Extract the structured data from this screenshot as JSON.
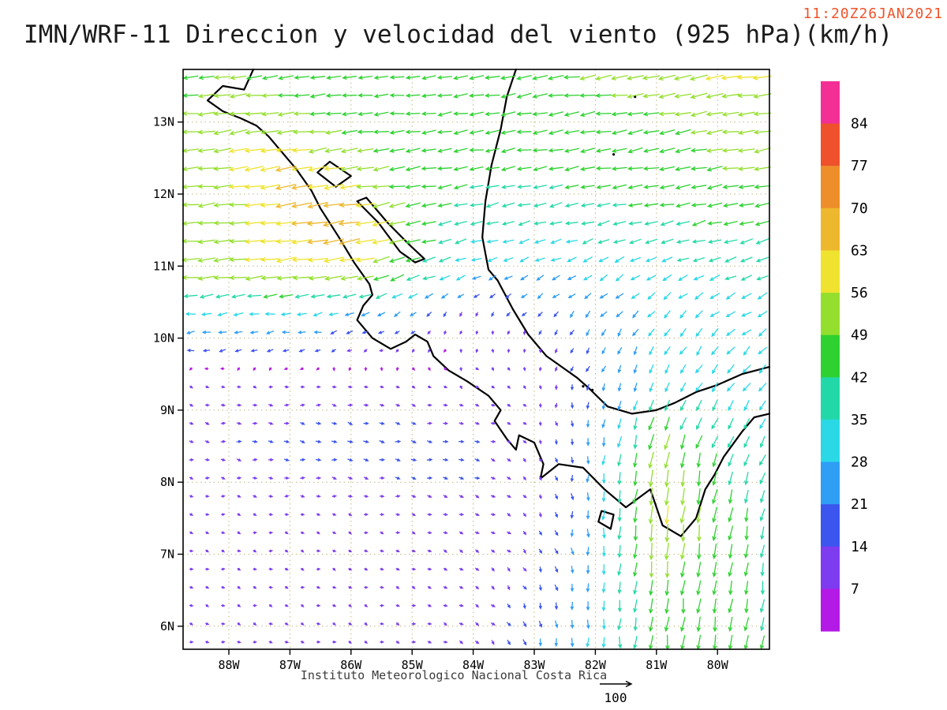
{
  "header": {
    "timestamp": "11:20Z26JAN2021",
    "title": "IMN/WRF-11 Direccion y velocidad del viento (925 hPa)(km/h)"
  },
  "footer": {
    "caption": "Instituto Meteorologico Nacional Costa Rica",
    "reference_vector_label": "100"
  },
  "chart_data": {
    "type": "vector_field_map",
    "title": "IMN/WRF-11 Direccion y velocidad del viento (925 hPa)(km/h)",
    "valid_time": "11:20Z26JAN2021",
    "level": "925 hPa",
    "units": "km/h",
    "reference_vector_kmh": 100,
    "x_axis": {
      "tick_labels": [
        "88W",
        "87W",
        "86W",
        "85W",
        "84W",
        "83W",
        "82W",
        "81W",
        "80W"
      ],
      "tick_lons": [
        -88,
        -87,
        -86,
        -85,
        -84,
        -83,
        -82,
        -81,
        -80
      ],
      "lon_range": [
        -88.75,
        -79.15
      ]
    },
    "y_axis": {
      "tick_labels": [
        "6N",
        "7N",
        "8N",
        "9N",
        "10N",
        "11N",
        "12N",
        "13N"
      ],
      "tick_lats": [
        6,
        7,
        8,
        9,
        10,
        11,
        12,
        13
      ],
      "lat_range": [
        5.68,
        13.73
      ]
    },
    "colorbar": {
      "levels": [
        7,
        14,
        21,
        28,
        35,
        42,
        49,
        56,
        63,
        70,
        77,
        84
      ],
      "colors_low_to_high": [
        "#b41ae6",
        "#7d3cf0",
        "#3c55ee",
        "#2f9ef5",
        "#2ad8e6",
        "#23d8a8",
        "#2ed130",
        "#94df2e",
        "#efe32f",
        "#eeb82e",
        "#ee8e2b",
        "#ee512b",
        "#f32f96"
      ],
      "tick_labels_top_to_bottom": [
        "84",
        "77",
        "70",
        "63",
        "56",
        "49",
        "42",
        "35",
        "28",
        "21",
        "14",
        "7"
      ]
    },
    "wind_grid": {
      "lons": [
        -89.2,
        -88,
        -87,
        -86,
        -85,
        -84,
        -83,
        -82,
        -81,
        -80,
        -79.2
      ],
      "lats": [
        5.6,
        6.5,
        7.5,
        8.5,
        9.3,
        9.8,
        10.3,
        10.9,
        11.5,
        12.3,
        13.1,
        13.8
      ],
      "u_east_kmh": [
        [
          7,
          8,
          8,
          9,
          10,
          11,
          4,
          0,
          -5,
          -7,
          -7
        ],
        [
          7,
          7,
          8,
          9,
          10,
          11,
          7,
          0,
          -5,
          -6,
          -6
        ],
        [
          8,
          9,
          10,
          10,
          11,
          12,
          9,
          -2,
          -8,
          -5,
          -9
        ],
        [
          12,
          14,
          15,
          16,
          16,
          15,
          8,
          -4,
          -10,
          -14,
          -15
        ],
        [
          10,
          11,
          12,
          12,
          10,
          8,
          4,
          -6,
          -11,
          -18,
          -22
        ],
        [
          -20,
          -19,
          -17,
          -12,
          -4,
          2,
          0,
          -8,
          -13,
          -20,
          -24
        ],
        [
          -28,
          -28,
          -27,
          -25,
          -16,
          -6,
          -10,
          -15,
          -20,
          -25,
          -28
        ],
        [
          -55,
          -56,
          -58,
          -56,
          -42,
          -26,
          -23,
          -25,
          -28,
          -32,
          -35
        ],
        [
          -50,
          -52,
          -62,
          -68,
          -46,
          -36,
          -35,
          -37,
          -39,
          -41,
          -42
        ],
        [
          -48,
          -55,
          -65,
          -55,
          -45,
          -42,
          -42,
          -44,
          -46,
          -48,
          -50
        ],
        [
          -45,
          -55,
          -50,
          -45,
          -43,
          -43,
          -45,
          -46,
          -48,
          -50,
          -52
        ],
        [
          -42,
          -48,
          -45,
          -42,
          -42,
          -45,
          -48,
          -50,
          -54,
          -58,
          -60
        ]
      ],
      "v_north_kmh": [
        [
          -2,
          -3,
          -3,
          -3,
          -4,
          -6,
          -22,
          -30,
          -44,
          -46,
          -42
        ],
        [
          -2,
          -2,
          -3,
          -3,
          -4,
          -5,
          -14,
          -27,
          -48,
          -44,
          -40
        ],
        [
          -2,
          -2,
          -2,
          -3,
          -3,
          -4,
          -9,
          -28,
          -58,
          -48,
          -38
        ],
        [
          -2,
          -2,
          -2,
          -3,
          -3,
          -4,
          -8,
          -24,
          -52,
          -38,
          -33
        ],
        [
          -2,
          -2,
          -2,
          -3,
          -4,
          -6,
          -10,
          -20,
          -28,
          -28,
          -25
        ],
        [
          -2,
          -2,
          -3,
          -5,
          -6,
          -7,
          -10,
          -18,
          -26,
          -26,
          -23
        ],
        [
          -3,
          -3,
          -4,
          -7,
          -12,
          -10,
          -14,
          -19,
          -21,
          -19,
          -17
        ],
        [
          -5,
          -6,
          -8,
          -13,
          -15,
          -12,
          -14,
          -15,
          -15,
          -14,
          -12
        ],
        [
          -5,
          -6,
          -10,
          -12,
          -8,
          -8,
          -9,
          -9,
          -10,
          -10,
          -10
        ],
        [
          -4,
          -6,
          -10,
          -8,
          -7,
          -7,
          -7,
          -7,
          -8,
          -8,
          -8
        ],
        [
          -4,
          -8,
          -6,
          -5,
          -5,
          -6,
          -7,
          -7,
          -8,
          -8,
          -8
        ],
        [
          -4,
          -6,
          -5,
          -5,
          -5,
          -6,
          -7,
          -8,
          -8,
          -9,
          -9
        ]
      ]
    },
    "map": {
      "coastlines": [
        [
          [
            -87.6,
            13.73
          ],
          [
            -87.75,
            13.45
          ],
          [
            -88.1,
            13.5
          ],
          [
            -88.35,
            13.3
          ],
          [
            -88.1,
            13.15
          ],
          [
            -87.8,
            13.05
          ],
          [
            -87.55,
            12.95
          ],
          [
            -87.35,
            12.8
          ],
          [
            -87.15,
            12.6
          ],
          [
            -86.9,
            12.35
          ],
          [
            -86.65,
            12.05
          ],
          [
            -86.5,
            11.8
          ],
          [
            -86.2,
            11.4
          ],
          [
            -85.95,
            11.05
          ],
          [
            -85.7,
            10.75
          ],
          [
            -85.65,
            10.6
          ],
          [
            -85.8,
            10.45
          ],
          [
            -85.9,
            10.25
          ],
          [
            -85.65,
            10.0
          ],
          [
            -85.35,
            9.85
          ],
          [
            -85.1,
            9.95
          ],
          [
            -84.95,
            10.05
          ],
          [
            -84.75,
            9.95
          ],
          [
            -84.65,
            9.75
          ],
          [
            -84.4,
            9.55
          ],
          [
            -84.1,
            9.4
          ],
          [
            -83.75,
            9.2
          ],
          [
            -83.55,
            9.0
          ],
          [
            -83.65,
            8.85
          ],
          [
            -83.45,
            8.6
          ],
          [
            -83.3,
            8.45
          ],
          [
            -83.25,
            8.65
          ],
          [
            -83.0,
            8.55
          ],
          [
            -82.85,
            8.25
          ],
          [
            -82.9,
            8.05
          ],
          [
            -82.6,
            8.25
          ],
          [
            -82.2,
            8.2
          ],
          [
            -81.85,
            7.9
          ],
          [
            -81.5,
            7.65
          ],
          [
            -81.1,
            7.9
          ],
          [
            -80.9,
            7.4
          ],
          [
            -80.6,
            7.25
          ],
          [
            -80.35,
            7.5
          ],
          [
            -80.2,
            7.9
          ],
          [
            -80.05,
            8.1
          ],
          [
            -79.9,
            8.35
          ],
          [
            -79.6,
            8.7
          ],
          [
            -79.4,
            8.9
          ],
          [
            -79.15,
            8.95
          ]
        ],
        [
          [
            -83.3,
            13.73
          ],
          [
            -83.45,
            13.35
          ],
          [
            -83.55,
            12.9
          ],
          [
            -83.7,
            12.4
          ],
          [
            -83.8,
            11.9
          ],
          [
            -83.85,
            11.4
          ],
          [
            -83.75,
            10.95
          ],
          [
            -83.6,
            10.8
          ],
          [
            -83.35,
            10.4
          ],
          [
            -83.1,
            10.05
          ],
          [
            -82.8,
            9.75
          ],
          [
            -82.55,
            9.6
          ],
          [
            -82.3,
            9.45
          ],
          [
            -82.1,
            9.3
          ],
          [
            -81.8,
            9.05
          ],
          [
            -81.4,
            8.95
          ],
          [
            -81.0,
            9.0
          ],
          [
            -80.7,
            9.1
          ],
          [
            -80.35,
            9.25
          ],
          [
            -80.0,
            9.35
          ],
          [
            -79.6,
            9.5
          ],
          [
            -79.15,
            9.6
          ]
        ]
      ],
      "lakes": [
        [
          [
            -85.9,
            11.9
          ],
          [
            -85.55,
            11.6
          ],
          [
            -85.2,
            11.2
          ],
          [
            -84.95,
            11.05
          ],
          [
            -84.8,
            11.1
          ],
          [
            -85.05,
            11.3
          ],
          [
            -85.4,
            11.6
          ],
          [
            -85.75,
            11.95
          ],
          [
            -85.9,
            11.9
          ]
        ],
        [
          [
            -86.35,
            12.45
          ],
          [
            -86.0,
            12.25
          ],
          [
            -86.25,
            12.1
          ],
          [
            -86.55,
            12.3
          ],
          [
            -86.35,
            12.45
          ]
        ]
      ],
      "island_polys": [
        [
          [
            -81.9,
            7.6
          ],
          [
            -81.7,
            7.55
          ],
          [
            -81.75,
            7.35
          ],
          [
            -81.95,
            7.45
          ],
          [
            -81.9,
            7.6
          ]
        ]
      ],
      "islands_small": [
        {
          "lon": -81.7,
          "lat": 12.55
        },
        {
          "lon": -81.35,
          "lat": 13.35
        },
        {
          "lon": -82.2,
          "lat": 9.33
        },
        {
          "lon": -82.05,
          "lat": 9.28
        }
      ]
    },
    "graticule": {
      "lon_step": 1,
      "lat_step": 1,
      "style": "dotted"
    }
  }
}
